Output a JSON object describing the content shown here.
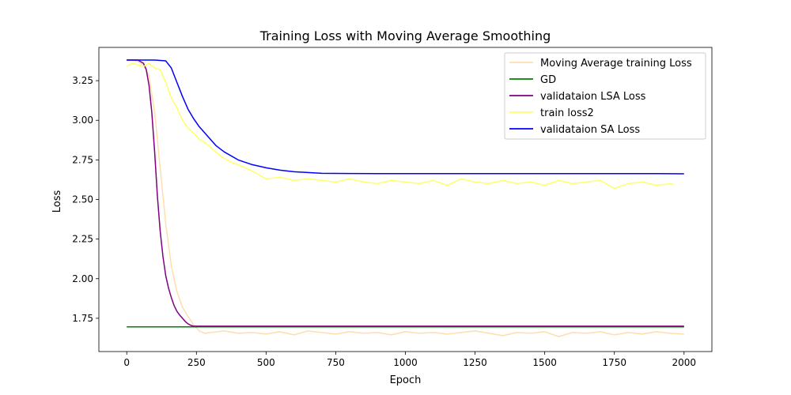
{
  "chart_data": {
    "type": "line",
    "title": "Training Loss with Moving Average Smoothing",
    "xlabel": "Epoch",
    "ylabel": "Loss",
    "xlim": [
      -100,
      2100
    ],
    "ylim": [
      1.54,
      3.46
    ],
    "xticks": [
      0,
      250,
      500,
      750,
      1000,
      1250,
      1500,
      1750,
      2000
    ],
    "yticks": [
      1.75,
      2.0,
      2.25,
      2.5,
      2.75,
      3.0,
      3.25
    ],
    "xtick_labels": [
      "0",
      "250",
      "500",
      "750",
      "1000",
      "1250",
      "1500",
      "1750",
      "2000"
    ],
    "ytick_labels": [
      "1.75",
      "2.00",
      "2.25",
      "2.50",
      "2.75",
      "3.00",
      "3.25"
    ],
    "grid": false,
    "legend_position": "top-right",
    "series": [
      {
        "name": "Moving Average training Loss",
        "color": "#ffdead",
        "x": [
          0,
          20,
          40,
          60,
          80,
          100,
          120,
          140,
          160,
          180,
          200,
          220,
          240,
          260,
          280,
          300,
          350,
          400,
          450,
          500,
          550,
          600,
          650,
          700,
          750,
          800,
          850,
          900,
          950,
          1000,
          1050,
          1100,
          1150,
          1200,
          1250,
          1300,
          1350,
          1400,
          1450,
          1500,
          1550,
          1600,
          1650,
          1700,
          1750,
          1800,
          1850,
          1900,
          1950,
          2000
        ],
        "y": [
          3.38,
          3.38,
          3.37,
          3.35,
          3.28,
          3.05,
          2.7,
          2.35,
          2.08,
          1.92,
          1.82,
          1.76,
          1.71,
          1.67,
          1.655,
          1.66,
          1.67,
          1.655,
          1.66,
          1.65,
          1.665,
          1.645,
          1.67,
          1.66,
          1.65,
          1.665,
          1.655,
          1.66,
          1.645,
          1.665,
          1.655,
          1.66,
          1.65,
          1.66,
          1.67,
          1.655,
          1.64,
          1.66,
          1.655,
          1.665,
          1.635,
          1.66,
          1.655,
          1.665,
          1.645,
          1.66,
          1.65,
          1.665,
          1.655,
          1.65
        ]
      },
      {
        "name": "GD",
        "color": "#008000",
        "x": [
          0,
          2000
        ],
        "y": [
          1.696,
          1.696
        ]
      },
      {
        "name": "validataion LSA Loss",
        "color": "#800080",
        "x": [
          0,
          40,
          60,
          70,
          80,
          90,
          100,
          110,
          120,
          130,
          140,
          150,
          160,
          170,
          180,
          190,
          200,
          210,
          220,
          230,
          240,
          250,
          260,
          280,
          300,
          400,
          500,
          600,
          700,
          800,
          900,
          1000,
          1100,
          1200,
          1300,
          1400,
          1500,
          1600,
          1700,
          1800,
          1900,
          2000
        ],
        "y": [
          3.38,
          3.38,
          3.36,
          3.32,
          3.22,
          3.05,
          2.8,
          2.52,
          2.3,
          2.14,
          2.02,
          1.94,
          1.88,
          1.83,
          1.795,
          1.77,
          1.75,
          1.73,
          1.715,
          1.705,
          1.7,
          1.7,
          1.7,
          1.7,
          1.7,
          1.7,
          1.7,
          1.7,
          1.7,
          1.7,
          1.7,
          1.7,
          1.7,
          1.7,
          1.7,
          1.7,
          1.7,
          1.7,
          1.7,
          1.7,
          1.7,
          1.7
        ]
      },
      {
        "name": "train loss2",
        "color": "#ffff66",
        "x": [
          0,
          20,
          40,
          60,
          80,
          100,
          120,
          140,
          160,
          180,
          200,
          220,
          240,
          260,
          280,
          300,
          320,
          340,
          360,
          380,
          400,
          450,
          500,
          550,
          600,
          650,
          700,
          750,
          800,
          850,
          900,
          950,
          1000,
          1050,
          1100,
          1150,
          1200,
          1250,
          1300,
          1350,
          1400,
          1450,
          1500,
          1550,
          1600,
          1650,
          1700,
          1750,
          1800,
          1850,
          1900,
          1960
        ],
        "y": [
          3.34,
          3.36,
          3.35,
          3.34,
          3.36,
          3.33,
          3.32,
          3.24,
          3.14,
          3.08,
          3.0,
          2.95,
          2.92,
          2.88,
          2.86,
          2.83,
          2.8,
          2.77,
          2.75,
          2.73,
          2.72,
          2.68,
          2.63,
          2.64,
          2.62,
          2.63,
          2.62,
          2.61,
          2.63,
          2.61,
          2.6,
          2.62,
          2.61,
          2.6,
          2.62,
          2.59,
          2.63,
          2.61,
          2.6,
          2.62,
          2.6,
          2.61,
          2.59,
          2.62,
          2.6,
          2.61,
          2.62,
          2.57,
          2.6,
          2.61,
          2.59,
          2.6
        ]
      },
      {
        "name": "validataion SA Loss",
        "color": "#0000ff",
        "x": [
          0,
          50,
          100,
          140,
          160,
          180,
          200,
          220,
          240,
          260,
          280,
          300,
          320,
          350,
          400,
          450,
          500,
          550,
          600,
          650,
          700,
          800,
          900,
          1000,
          1100,
          1200,
          1300,
          1400,
          1500,
          1600,
          1700,
          1800,
          1900,
          2000
        ],
        "y": [
          3.38,
          3.38,
          3.38,
          3.375,
          3.33,
          3.24,
          3.15,
          3.07,
          3.01,
          2.96,
          2.92,
          2.88,
          2.84,
          2.8,
          2.75,
          2.72,
          2.7,
          2.685,
          2.675,
          2.67,
          2.665,
          2.664,
          2.663,
          2.663,
          2.663,
          2.663,
          2.663,
          2.663,
          2.663,
          2.663,
          2.663,
          2.663,
          2.663,
          2.662
        ]
      }
    ]
  }
}
